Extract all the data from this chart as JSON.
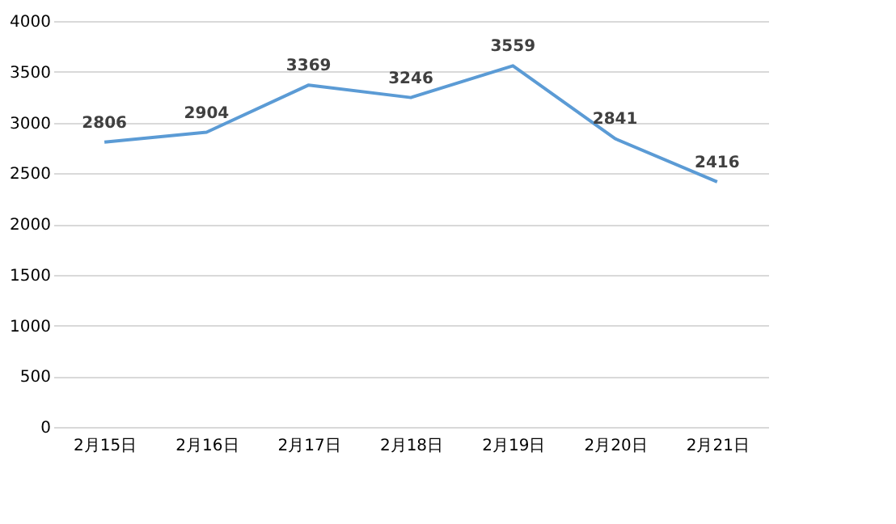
{
  "chart_data": {
    "type": "line",
    "categories": [
      "2月15日",
      "2月16日",
      "2月17日",
      "2月18日",
      "2月19日",
      "2月20日",
      "2月21日"
    ],
    "series": [
      {
        "color": "#5b9bd5",
        "values": [
          2806,
          2904,
          3369,
          3246,
          3559,
          2841,
          2416
        ]
      }
    ],
    "ylim": [
      0,
      4000
    ],
    "yticks": [
      0,
      500,
      1000,
      1500,
      2000,
      2500,
      3000,
      3500,
      4000
    ],
    "grid": "y",
    "data_labels": true,
    "marker": "none",
    "line_style": "solid"
  }
}
